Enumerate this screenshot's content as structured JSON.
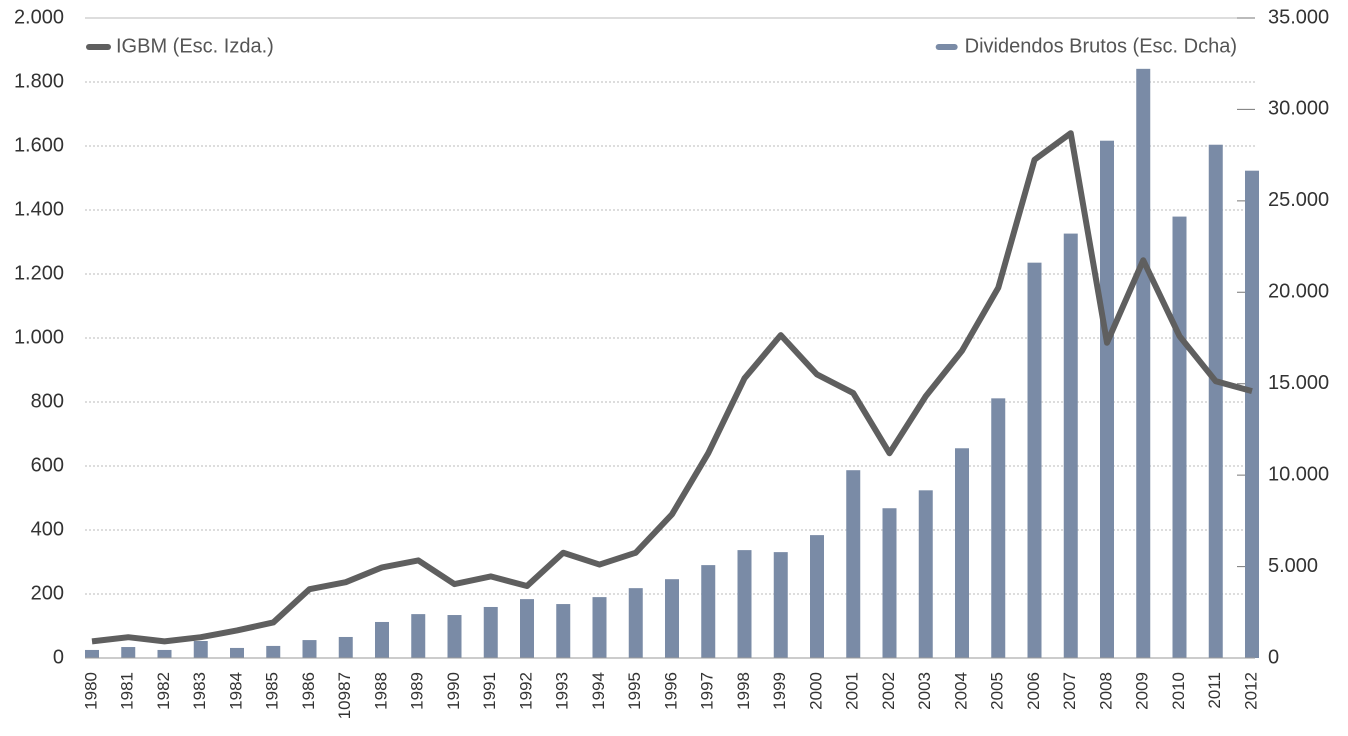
{
  "chart_data": {
    "type": "bar-line",
    "categories": [
      "1980",
      "1981",
      "1982",
      "1983",
      "1984",
      "1985",
      "1986",
      "10987",
      "1988",
      "1989",
      "1990",
      "1991",
      "1992",
      "1993",
      "1994",
      "1995",
      "1996",
      "1997",
      "1998",
      "1999",
      "2000",
      "2001",
      "2002",
      "2003",
      "2004",
      "2005",
      "2006",
      "2007",
      "2008",
      "2009",
      "2010",
      "2011",
      "2012"
    ],
    "series": [
      {
        "name": "IGBM (Esc. Izda.)",
        "color": "#5f5f5f",
        "kind": "line",
        "values": [
          52,
          65,
          52,
          65,
          86,
          111,
          215,
          237,
          283,
          305,
          231,
          255,
          225,
          329,
          292,
          329,
          449,
          640,
          874,
          1009,
          886,
          828,
          640,
          818,
          960,
          1157,
          1557,
          1640,
          985,
          1243,
          1006,
          865,
          834
        ]
      },
      {
        "name": "Dividendos Brutos (Esc. Dcha)",
        "color": "#7a8ba6",
        "kind": "bar",
        "axis": "y2",
        "values": [
          440,
          600,
          440,
          930,
          550,
          660,
          980,
          1150,
          1970,
          2400,
          2350,
          2790,
          3220,
          2950,
          3330,
          3820,
          4310,
          5080,
          5900,
          5790,
          6720,
          10270,
          8190,
          9170,
          11470,
          14200,
          21620,
          23210,
          28290,
          32220,
          24140,
          28070,
          26650
        ]
      }
    ],
    "ylim": [
      0,
      2000
    ],
    "yticks": [
      0,
      200,
      400,
      600,
      800,
      {
        "value": 1000,
        "label": "1.000"
      },
      {
        "value": 1200,
        "label": "1.200"
      },
      {
        "value": 1400,
        "label": "1.400"
      },
      {
        "value": 1600,
        "label": "1.600"
      },
      {
        "value": 1800,
        "label": "1.800"
      },
      {
        "value": 2000,
        "label": "2.000"
      }
    ],
    "y2lim": [
      0,
      35000
    ],
    "y2ticks": [
      0,
      {
        "value": 5000,
        "label": "5.000"
      },
      {
        "value": 10000,
        "label": "10.000"
      },
      {
        "value": 15000,
        "label": "15.000"
      },
      {
        "value": 20000,
        "label": "20.000"
      },
      {
        "value": 25000,
        "label": "25.000"
      },
      {
        "value": 30000,
        "label": "30.000"
      },
      {
        "value": 35000,
        "label": "35.000"
      }
    ],
    "grid": true
  }
}
